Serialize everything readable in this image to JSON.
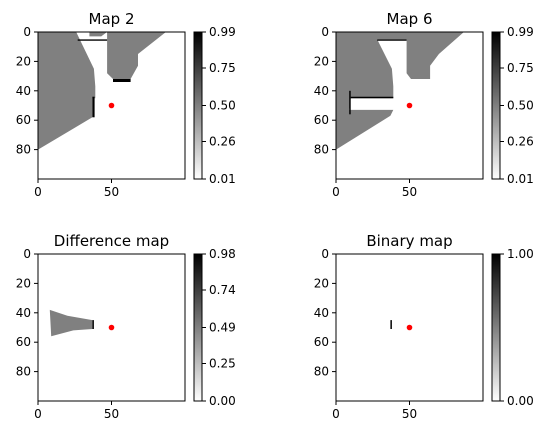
{
  "figure": {
    "colormap": "gray_r",
    "marker_color": "#ff0000"
  },
  "chart_data": [
    {
      "type": "heatmap",
      "title": "Map 2",
      "xlim": [
        0,
        100
      ],
      "ylim": [
        100,
        0
      ],
      "xticks": [
        "0",
        "50"
      ],
      "yticks": [
        "0",
        "20",
        "40",
        "60",
        "80"
      ],
      "colorbar": {
        "ticks": [
          "0.01",
          "0.26",
          "0.50",
          "0.75",
          "0.99"
        ],
        "range": [
          0.01,
          0.99
        ]
      },
      "marker": {
        "x": 50,
        "y": 50
      },
      "regions": [
        {
          "name": "unknown-region",
          "value": 0.5,
          "polygon": [
            [
              0,
              0
            ],
            [
              27,
              0
            ],
            [
              43,
              0
            ],
            [
              50,
              0
            ],
            [
              87,
              0
            ],
            [
              68,
              15
            ],
            [
              68,
              23
            ],
            [
              63,
              32
            ],
            [
              51,
              32
            ],
            [
              47,
              28
            ],
            [
              47,
              0
            ],
            [
              43,
              3
            ],
            [
              35,
              3
            ],
            [
              35,
              0
            ],
            [
              26,
              0
            ],
            [
              38,
              25
            ],
            [
              39,
              37
            ],
            [
              39,
              45
            ],
            [
              37,
              45
            ],
            [
              37,
              58
            ],
            [
              0,
              80
            ]
          ]
        },
        {
          "name": "occupied-wall-top",
          "value": 0.99,
          "polygon": [
            [
              27,
              5
            ],
            [
              47,
              5
            ],
            [
              47,
              6
            ],
            [
              27,
              6
            ]
          ]
        },
        {
          "name": "occupied-wall-right",
          "value": 0.99,
          "polygon": [
            [
              51,
              32
            ],
            [
              63,
              32
            ],
            [
              63,
              34
            ],
            [
              51,
              34
            ]
          ]
        },
        {
          "name": "occupied-wall-left",
          "value": 0.99,
          "polygon": [
            [
              37,
              44
            ],
            [
              38.5,
              44
            ],
            [
              38.5,
              58
            ],
            [
              37,
              58
            ]
          ]
        }
      ]
    },
    {
      "type": "heatmap",
      "title": "Map 6",
      "xlim": [
        0,
        100
      ],
      "ylim": [
        100,
        0
      ],
      "xticks": [
        "0",
        "50"
      ],
      "yticks": [
        "0",
        "20",
        "40",
        "60",
        "80"
      ],
      "colorbar": {
        "ticks": [
          "0.01",
          "0.26",
          "0.50",
          "0.75",
          "0.99"
        ],
        "range": [
          0.01,
          0.99
        ]
      },
      "marker": {
        "x": 50,
        "y": 50
      },
      "regions": [
        {
          "name": "unknown-region",
          "value": 0.5,
          "polygon": [
            [
              0,
              0
            ],
            [
              87,
              0
            ],
            [
              70,
              15
            ],
            [
              64,
              23
            ],
            [
              64,
              32
            ],
            [
              51,
              32
            ],
            [
              48,
              28
            ],
            [
              48,
              5
            ],
            [
              28,
              5
            ],
            [
              38,
              25
            ],
            [
              39,
              37
            ],
            [
              39,
              45
            ],
            [
              10,
              45
            ],
            [
              9,
              53
            ],
            [
              39,
              53
            ],
            [
              37,
              57
            ],
            [
              0,
              80
            ]
          ]
        },
        {
          "name": "occupied-wall-top",
          "value": 0.99,
          "polygon": [
            [
              28,
              5
            ],
            [
              48,
              5
            ],
            [
              48,
              6
            ],
            [
              28,
              6
            ]
          ]
        },
        {
          "name": "occupied-wall-room",
          "value": 0.99,
          "polygon": [
            [
              10,
              44
            ],
            [
              39,
              44
            ],
            [
              39,
              45
            ],
            [
              10,
              45
            ]
          ]
        },
        {
          "name": "occupied-wall-room-left",
          "value": 0.99,
          "polygon": [
            [
              9,
              40
            ],
            [
              10,
              40
            ],
            [
              10,
              56
            ],
            [
              9,
              56
            ]
          ]
        }
      ]
    },
    {
      "type": "heatmap",
      "title": "Difference map",
      "xlim": [
        0,
        100
      ],
      "ylim": [
        100,
        0
      ],
      "xticks": [
        "0",
        "50"
      ],
      "yticks": [
        "0",
        "20",
        "40",
        "60",
        "80"
      ],
      "colorbar": {
        "ticks": [
          "0.00",
          "0.25",
          "0.49",
          "0.74",
          "0.98"
        ],
        "range": [
          0,
          0.98
        ]
      },
      "marker": {
        "x": 50,
        "y": 50
      },
      "regions": [
        {
          "name": "difference-region",
          "value": 0.49,
          "polygon": [
            [
              8,
              38
            ],
            [
              20,
              42
            ],
            [
              37,
              45
            ],
            [
              37,
              51
            ],
            [
              24,
              52
            ],
            [
              9,
              56
            ]
          ]
        },
        {
          "name": "difference-edge",
          "value": 0.98,
          "polygon": [
            [
              37,
              45
            ],
            [
              38,
              45
            ],
            [
              38,
              51
            ],
            [
              37,
              51
            ]
          ]
        }
      ]
    },
    {
      "type": "heatmap",
      "title": "Binary map",
      "xlim": [
        0,
        100
      ],
      "ylim": [
        100,
        0
      ],
      "xticks": [
        "0",
        "50"
      ],
      "yticks": [
        "0",
        "20",
        "40",
        "60",
        "80"
      ],
      "colorbar": {
        "ticks": [
          "0.00",
          "1.00"
        ],
        "range": [
          0,
          1
        ]
      },
      "marker": {
        "x": 50,
        "y": 50
      },
      "regions": [
        {
          "name": "binary-edge",
          "value": 1.0,
          "polygon": [
            [
              37,
              45
            ],
            [
              38,
              45
            ],
            [
              38,
              51
            ],
            [
              37,
              51
            ]
          ]
        }
      ]
    }
  ]
}
